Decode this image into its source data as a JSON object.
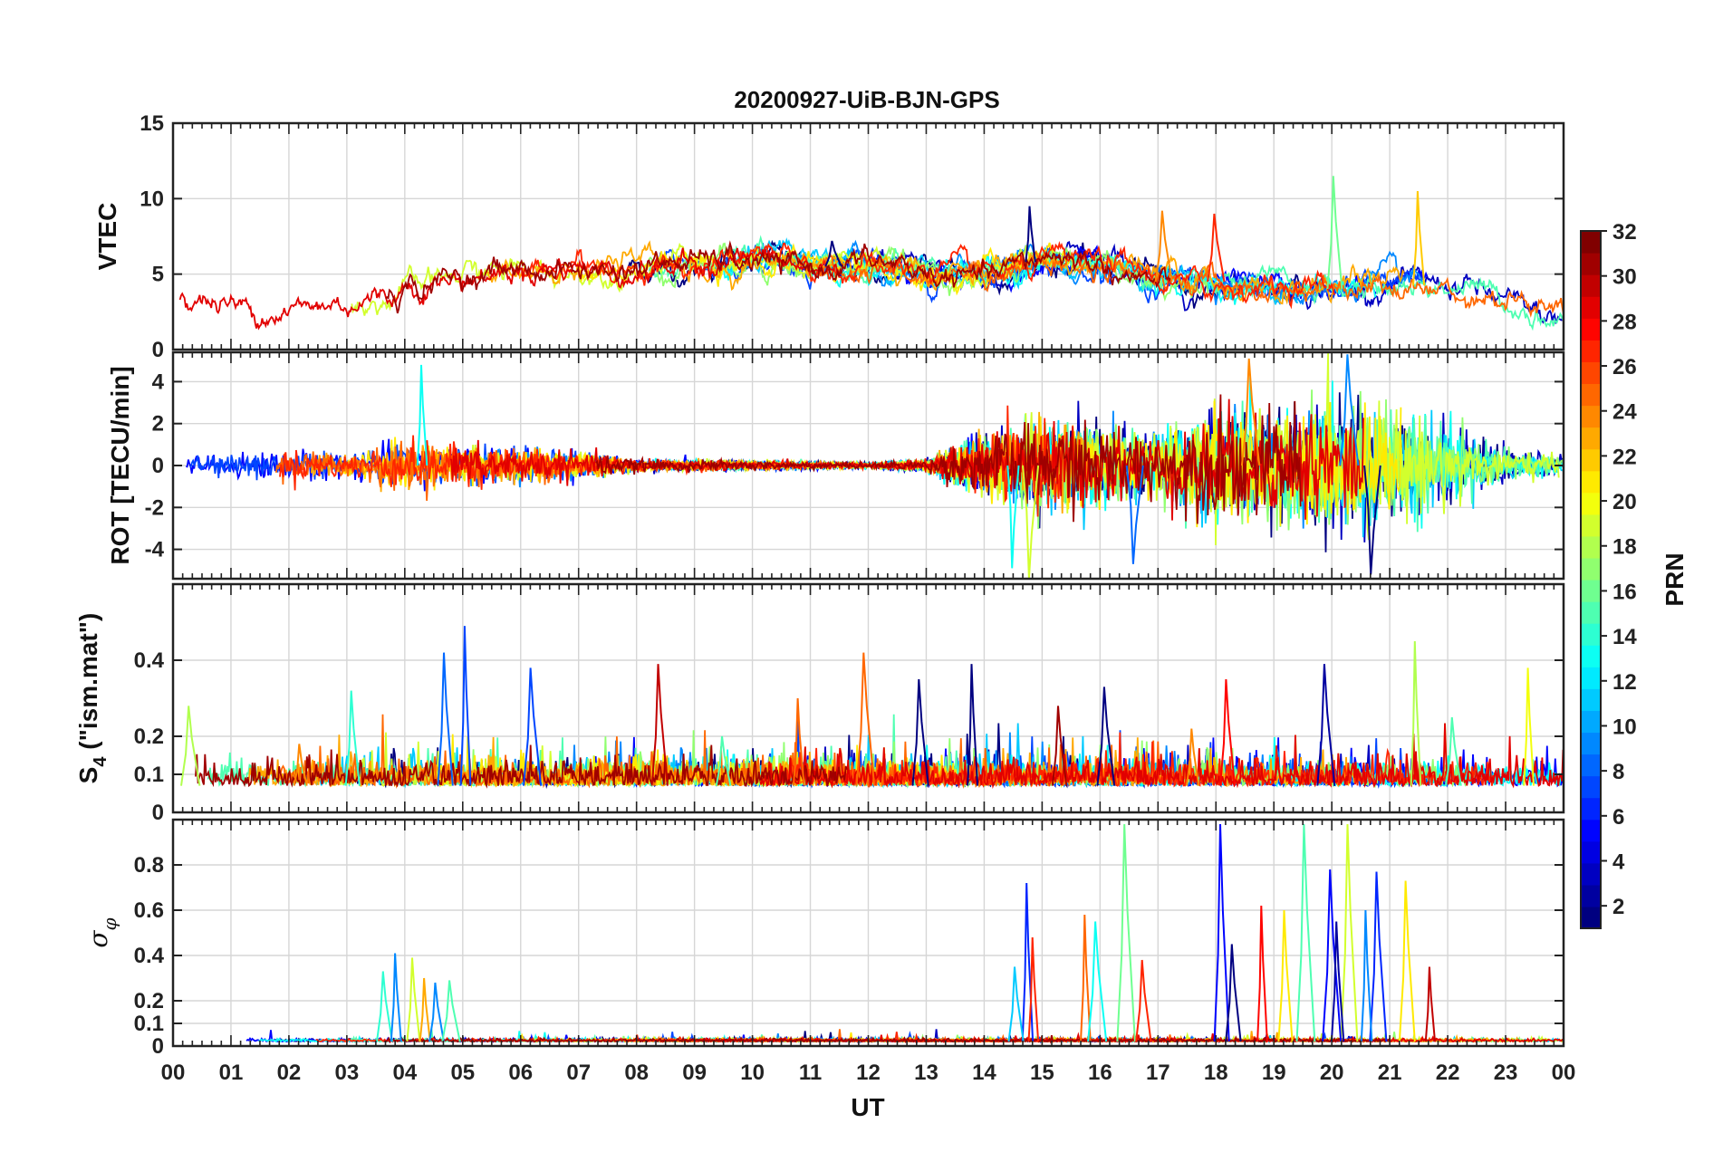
{
  "chart_data": {
    "type": "line",
    "title": "20200927-UiB-BJN-GPS",
    "xlabel": "UT",
    "x_tick_labels": [
      "00",
      "01",
      "02",
      "03",
      "04",
      "05",
      "06",
      "07",
      "08",
      "09",
      "10",
      "11",
      "12",
      "13",
      "14",
      "15",
      "16",
      "17",
      "18",
      "19",
      "20",
      "21",
      "22",
      "23",
      "00"
    ],
    "xlim": [
      0,
      24
    ],
    "grid": true,
    "colorbar": {
      "label": "PRN",
      "range": [
        1,
        32
      ],
      "colormap": "jet",
      "tick_labels": [
        "2",
        "4",
        "6",
        "8",
        "10",
        "12",
        "14",
        "16",
        "18",
        "20",
        "22",
        "24",
        "26",
        "28",
        "30",
        "32"
      ]
    },
    "panels": [
      {
        "id": "vtec",
        "ylabel": "VTEC",
        "ylim": [
          0,
          15
        ],
        "y_ticks": [
          0,
          5,
          10,
          15
        ],
        "y_tick_labels": [
          "0",
          "5",
          "10",
          "15"
        ],
        "profile": {
          "x": [
            0,
            1,
            2,
            3,
            3.7,
            4,
            5,
            6,
            7,
            8,
            9,
            10,
            11,
            12,
            13,
            14,
            15,
            16,
            17,
            18,
            19,
            20,
            21,
            22,
            23,
            24
          ],
          "y": [
            3,
            3,
            2.8,
            2.8,
            3.5,
            4.5,
            5,
            5,
            5.5,
            5.5,
            5.5,
            6,
            5.5,
            5.5,
            5,
            5,
            6,
            5.5,
            4.5,
            4.5,
            4,
            4,
            4.5,
            4,
            3,
            2
          ]
        },
        "peaks": [
          [
            20.05,
            11.5
          ],
          [
            21.5,
            10.5
          ],
          [
            14.8,
            9.5
          ],
          [
            17.1,
            9.2
          ],
          [
            18.0,
            9.0
          ],
          [
            11.4,
            7.2
          ]
        ]
      },
      {
        "id": "rot",
        "ylabel": "ROT [TECU/min]",
        "ylim": [
          -5.4,
          5.4
        ],
        "y_ticks": [
          -4,
          -2,
          0,
          2,
          4
        ],
        "y_tick_labels": [
          "-4",
          "-2",
          "0",
          "2",
          "4"
        ],
        "activity": {
          "x": [
            0,
            2,
            3,
            4,
            5,
            7,
            8,
            12,
            13,
            14,
            15,
            16,
            17,
            18,
            19,
            20,
            21,
            22,
            23,
            24
          ],
          "amplitude": [
            0.4,
            0.8,
            0.6,
            1.2,
            1.0,
            0.7,
            0.3,
            0.15,
            0.3,
            1.5,
            2.2,
            2.0,
            1.6,
            2.8,
            2.5,
            3.2,
            2.8,
            1.8,
            0.8,
            0.5
          ]
        },
        "peaks": [
          [
            18.6,
            5.1
          ],
          [
            20.3,
            5.3
          ],
          [
            14.8,
            -5.4
          ],
          [
            20.7,
            -5.2
          ],
          [
            14.5,
            -4.9
          ],
          [
            16.6,
            -4.7
          ],
          [
            4.3,
            4.8
          ]
        ]
      },
      {
        "id": "s4",
        "ylabel": "S4 (\"ism.mat\")",
        "ylabel_main": "S",
        "ylabel_sub": "4",
        "ylabel_rest": " (\"ism.mat\")",
        "ylim": [
          0,
          0.6
        ],
        "y_ticks": [
          0,
          0.1,
          0.2,
          0.4
        ],
        "y_tick_labels": [
          "0",
          "0.1",
          "0.2",
          "0.4"
        ],
        "baseline": 0.07,
        "peaks": [
          [
            5.05,
            0.49
          ],
          [
            4.7,
            0.42
          ],
          [
            11.95,
            0.42
          ],
          [
            21.45,
            0.45
          ],
          [
            8.4,
            0.39
          ],
          [
            13.8,
            0.39
          ],
          [
            19.9,
            0.39
          ],
          [
            23.4,
            0.38
          ],
          [
            6.2,
            0.38
          ],
          [
            0.3,
            0.28
          ],
          [
            3.1,
            0.32
          ],
          [
            12.9,
            0.35
          ],
          [
            16.1,
            0.33
          ],
          [
            18.2,
            0.35
          ],
          [
            15.3,
            0.28
          ],
          [
            10.8,
            0.3
          ],
          [
            2.2,
            0.18
          ],
          [
            9.5,
            0.2
          ],
          [
            17.6,
            0.22
          ],
          [
            22.1,
            0.25
          ]
        ]
      },
      {
        "id": "sigma_phi",
        "ylabel": "σφ",
        "ylabel_main": "σ",
        "ylabel_sub": "φ",
        "ylim": [
          0,
          1.0
        ],
        "y_ticks": [
          0,
          0.1,
          0.2,
          0.4,
          0.6,
          0.8
        ],
        "y_tick_labels": [
          "0",
          "0.1",
          "0.2",
          "0.4",
          "0.6",
          "0.8"
        ],
        "baseline": 0.02,
        "peaks": [
          [
            16.45,
            0.98
          ],
          [
            18.1,
            0.98
          ],
          [
            19.55,
            0.98
          ],
          [
            20.3,
            0.98
          ],
          [
            14.75,
            0.72
          ],
          [
            15.75,
            0.58
          ],
          [
            20.0,
            0.78
          ],
          [
            20.8,
            0.77
          ],
          [
            21.3,
            0.73
          ],
          [
            14.55,
            0.35
          ],
          [
            14.85,
            0.48
          ],
          [
            15.95,
            0.55
          ],
          [
            16.75,
            0.38
          ],
          [
            18.8,
            0.62
          ],
          [
            19.2,
            0.6
          ],
          [
            20.6,
            0.6
          ],
          [
            21.7,
            0.35
          ],
          [
            3.65,
            0.33
          ],
          [
            3.85,
            0.41
          ],
          [
            4.15,
            0.39
          ],
          [
            4.35,
            0.3
          ],
          [
            4.55,
            0.28
          ],
          [
            4.8,
            0.29
          ],
          [
            18.3,
            0.45
          ],
          [
            20.1,
            0.55
          ]
        ]
      }
    ]
  }
}
